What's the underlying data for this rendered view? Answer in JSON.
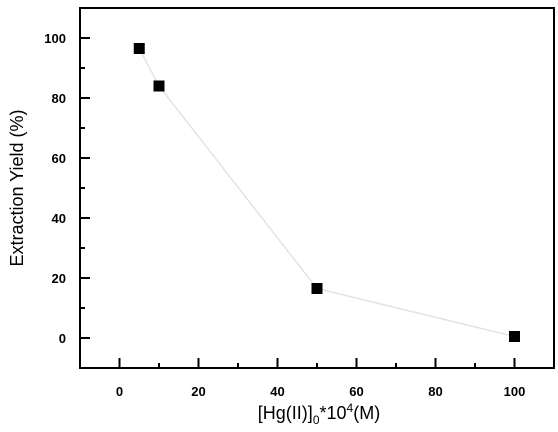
{
  "chart_data": {
    "type": "line",
    "xlabel_parts": [
      "[Hg(II)]",
      "0",
      "*10",
      "4",
      "(M)"
    ],
    "ylabel": "Extraction Yield (%)",
    "xlim": [
      -10,
      110
    ],
    "ylim": [
      -10,
      110
    ],
    "x_ticks": [
      0,
      20,
      40,
      60,
      80,
      100
    ],
    "y_ticks": [
      0,
      20,
      40,
      60,
      80,
      100
    ],
    "x_tick_labels": [
      "0",
      "20",
      "40",
      "60",
      "80",
      "100"
    ],
    "y_tick_labels": [
      "0",
      "20",
      "40",
      "60",
      "80",
      "100"
    ],
    "series": [
      {
        "x": [
          5,
          10,
          50,
          100
        ],
        "y": [
          96.5,
          84,
          16.5,
          0.5
        ],
        "marker": "square",
        "marker_color": "#000000",
        "line_color": "#e3e3e3"
      }
    ],
    "grid": false,
    "legend": "none"
  }
}
